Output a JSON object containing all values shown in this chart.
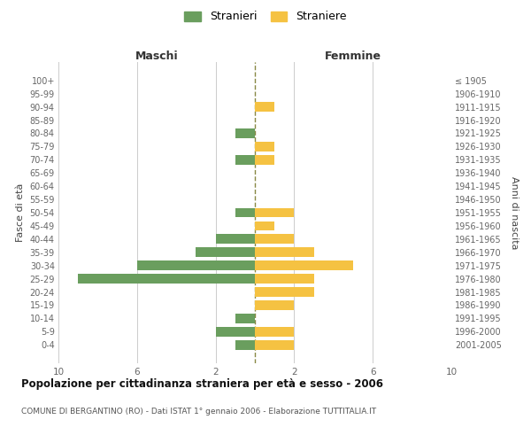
{
  "age_groups": [
    "0-4",
    "5-9",
    "10-14",
    "15-19",
    "20-24",
    "25-29",
    "30-34",
    "35-39",
    "40-44",
    "45-49",
    "50-54",
    "55-59",
    "60-64",
    "65-69",
    "70-74",
    "75-79",
    "80-84",
    "85-89",
    "90-94",
    "95-99",
    "100+"
  ],
  "birth_years": [
    "2001-2005",
    "1996-2000",
    "1991-1995",
    "1986-1990",
    "1981-1985",
    "1976-1980",
    "1971-1975",
    "1966-1970",
    "1961-1965",
    "1956-1960",
    "1951-1955",
    "1946-1950",
    "1941-1945",
    "1936-1940",
    "1931-1935",
    "1926-1930",
    "1921-1925",
    "1916-1920",
    "1911-1915",
    "1906-1910",
    "≤ 1905"
  ],
  "males": [
    1,
    2,
    1,
    0,
    0,
    9,
    6,
    3,
    2,
    0,
    1,
    0,
    0,
    0,
    1,
    0,
    1,
    0,
    0,
    0,
    0
  ],
  "females": [
    2,
    2,
    0,
    2,
    3,
    3,
    5,
    3,
    2,
    1,
    2,
    0,
    0,
    0,
    1,
    1,
    0,
    0,
    1,
    0,
    0
  ],
  "male_color": "#6a9e5e",
  "female_color": "#f5c242",
  "background_color": "#ffffff",
  "grid_color": "#cccccc",
  "dashed_line_color": "#888844",
  "title": "Popolazione per cittadinanza straniera per età e sesso - 2006",
  "subtitle": "COMUNE DI BERGANTINO (RO) - Dati ISTAT 1° gennaio 2006 - Elaborazione TUTTITALIA.IT",
  "xlabel_left": "Maschi",
  "xlabel_right": "Femmine",
  "ylabel_left": "Fasce di età",
  "ylabel_right": "Anni di nascita",
  "legend_males": "Stranieri",
  "legend_females": "Straniere",
  "xlim": 10,
  "bar_height": 0.72
}
